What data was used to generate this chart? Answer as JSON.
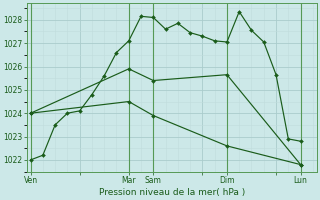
{
  "xlabel": "Pression niveau de la mer( hPa )",
  "background_color": "#cce8e8",
  "grid_major_color": "#aacccc",
  "grid_minor_color": "#c0dcdc",
  "vline_color": "#559955",
  "line_color": "#1a5c1a",
  "ylim": [
    1021.5,
    1028.7
  ],
  "yticks": [
    1022,
    1023,
    1024,
    1025,
    1026,
    1027,
    1028
  ],
  "xlim": [
    -0.3,
    23.3
  ],
  "xtick_labels": [
    "Ven",
    "",
    "Mar",
    "Sam",
    "",
    "Dim",
    "",
    "Lun"
  ],
  "xtick_pos": [
    0,
    4,
    8,
    10,
    14,
    16,
    20,
    22
  ],
  "vlines_x": [
    0,
    8,
    10,
    16,
    22
  ],
  "line1_x": [
    0,
    1,
    2,
    3,
    4,
    5,
    6,
    7,
    8,
    9,
    10,
    11,
    12,
    13,
    14,
    15,
    16,
    17,
    18,
    19,
    20,
    21,
    22
  ],
  "line1_y": [
    1022.0,
    1022.2,
    1023.5,
    1024.0,
    1024.1,
    1024.8,
    1025.6,
    1026.6,
    1027.1,
    1028.15,
    1028.1,
    1027.6,
    1027.85,
    1027.45,
    1027.3,
    1027.1,
    1027.05,
    1028.35,
    1027.55,
    1027.05,
    1025.65,
    1022.9,
    1022.8
  ],
  "line2_x": [
    0,
    8,
    10,
    16,
    22
  ],
  "line2_y": [
    1024.0,
    1025.9,
    1025.4,
    1025.65,
    1021.8
  ],
  "line3_x": [
    0,
    8,
    10,
    16,
    22
  ],
  "line3_y": [
    1024.0,
    1024.5,
    1023.9,
    1022.6,
    1021.8
  ]
}
